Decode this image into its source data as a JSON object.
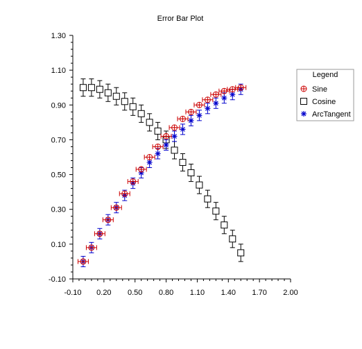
{
  "chart_data": {
    "type": "scatter",
    "title": "Error Bar Plot",
    "xlabel": "",
    "ylabel": "",
    "xlim": [
      -0.1,
      2.0
    ],
    "ylim": [
      -0.1,
      1.3
    ],
    "x_ticks": [
      "-0.10",
      "0.20",
      "0.50",
      "0.80",
      "1.10",
      "1.40",
      "1.70",
      "2.00"
    ],
    "y_ticks": [
      "-0.10",
      "0.10",
      "0.30",
      "0.50",
      "0.70",
      "0.90",
      "1.10",
      "1.30"
    ],
    "grid": false,
    "legend": {
      "title": "Legend",
      "position": "right"
    },
    "series": [
      {
        "name": "Sine",
        "marker": "circle-plus",
        "color": "#cc0000",
        "error_direction": "x",
        "error": 0.05,
        "x": [
          0.0,
          0.08,
          0.16,
          0.24,
          0.32,
          0.4,
          0.48,
          0.56,
          0.64,
          0.72,
          0.8,
          0.88,
          0.96,
          1.04,
          1.12,
          1.2,
          1.28,
          1.36,
          1.44,
          1.52
        ],
        "y": [
          0.0,
          0.08,
          0.16,
          0.24,
          0.31,
          0.39,
          0.46,
          0.53,
          0.6,
          0.66,
          0.72,
          0.77,
          0.82,
          0.86,
          0.9,
          0.93,
          0.96,
          0.98,
          0.99,
          1.0
        ]
      },
      {
        "name": "Cosine",
        "marker": "square",
        "color": "#000000",
        "error_direction": "y",
        "error": 0.05,
        "x": [
          0.0,
          0.08,
          0.16,
          0.24,
          0.32,
          0.4,
          0.48,
          0.56,
          0.64,
          0.72,
          0.8,
          0.88,
          0.96,
          1.04,
          1.12,
          1.2,
          1.28,
          1.36,
          1.44,
          1.52
        ],
        "y": [
          1.0,
          1.0,
          0.99,
          0.97,
          0.95,
          0.92,
          0.89,
          0.85,
          0.8,
          0.75,
          0.7,
          0.64,
          0.57,
          0.51,
          0.44,
          0.36,
          0.29,
          0.21,
          0.13,
          0.05
        ]
      },
      {
        "name": "ArcTangent",
        "marker": "asterisk",
        "color": "#0000cc",
        "error_direction": "y",
        "error": 0.03,
        "x": [
          0.0,
          0.08,
          0.16,
          0.24,
          0.32,
          0.4,
          0.48,
          0.56,
          0.64,
          0.72,
          0.8,
          0.88,
          0.96,
          1.04,
          1.12,
          1.2,
          1.28,
          1.36,
          1.44,
          1.52
        ],
        "y": [
          0.0,
          0.08,
          0.16,
          0.24,
          0.31,
          0.38,
          0.45,
          0.51,
          0.57,
          0.62,
          0.67,
          0.72,
          0.76,
          0.81,
          0.84,
          0.88,
          0.91,
          0.94,
          0.96,
          0.99
        ]
      }
    ]
  }
}
